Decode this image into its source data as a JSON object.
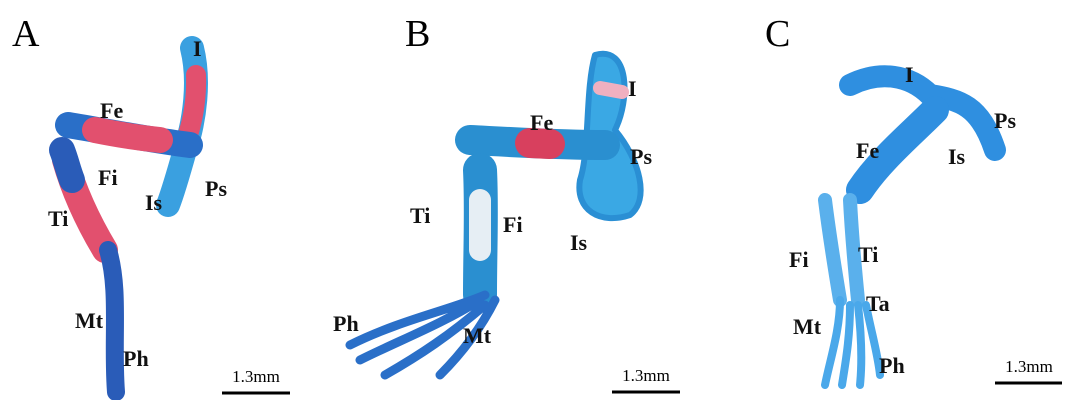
{
  "panels": [
    {
      "letter": "A",
      "labels": [
        "I",
        "Fe",
        "Fi",
        "Ti",
        "Is",
        "Ps",
        "Mt",
        "Ph"
      ],
      "scale": "1.3mm"
    },
    {
      "letter": "B",
      "labels": [
        "I",
        "Fe",
        "Ps",
        "Ti",
        "Fi",
        "Is",
        "Ph",
        "Mt"
      ],
      "scale": "1.3mm"
    },
    {
      "letter": "C",
      "labels": [
        "I",
        "Ps",
        "Fe",
        "Is",
        "Fi",
        "Ti",
        "Ta",
        "Mt",
        "Ph"
      ],
      "scale": "1.3mm"
    }
  ]
}
